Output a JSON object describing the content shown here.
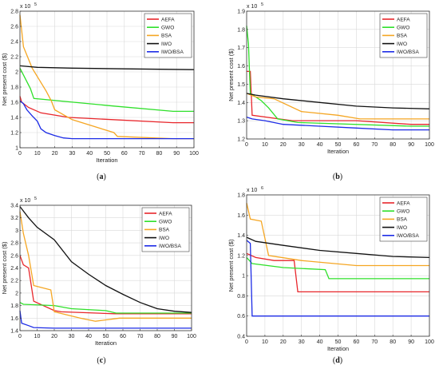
{
  "colors": {
    "AEFA": "#e8262b",
    "GWO": "#2fe02a",
    "BSA": "#f5a623",
    "IWO": "#111111",
    "IWO/BSA": "#1c2be6"
  },
  "chart_data": [
    {
      "type": "line",
      "caption": "(a)",
      "xlabel": "Iteration",
      "ylabel": "Net present cost ($)",
      "exponent_label": "x 10",
      "exponent": "5",
      "xlim": [
        0,
        100
      ],
      "ylim": [
        1.0,
        2.8
      ],
      "xticks": [
        0,
        10,
        20,
        30,
        40,
        50,
        60,
        70,
        80,
        90,
        100
      ],
      "yticks": [
        1,
        1.2,
        1.4,
        1.6,
        1.8,
        2,
        2.2,
        2.4,
        2.6,
        2.8
      ],
      "ytick_labels": [
        "1",
        "1.2",
        "1.4",
        "1.6",
        "1.8",
        "2",
        "2.2",
        "2.4",
        "2.6",
        "2.8"
      ],
      "series": [
        {
          "name": "AEFA",
          "points": [
            [
              0,
              1.68
            ],
            [
              1,
              1.6
            ],
            [
              5,
              1.53
            ],
            [
              12,
              1.46
            ],
            [
              28,
              1.4
            ],
            [
              88,
              1.33
            ],
            [
              100,
              1.33
            ]
          ]
        },
        {
          "name": "GWO",
          "points": [
            [
              0,
              2.05
            ],
            [
              6,
              1.78
            ],
            [
              8,
              1.65
            ],
            [
              54,
              1.55
            ],
            [
              88,
              1.48
            ],
            [
              100,
              1.48
            ]
          ]
        },
        {
          "name": "BSA",
          "points": [
            [
              0,
              2.75
            ],
            [
              2,
              2.33
            ],
            [
              7,
              2.05
            ],
            [
              15,
              1.75
            ],
            [
              18,
              1.62
            ],
            [
              20,
              1.5
            ],
            [
              30,
              1.37
            ],
            [
              54,
              1.2
            ],
            [
              56,
              1.15
            ],
            [
              88,
              1.12
            ],
            [
              100,
              1.12
            ]
          ]
        },
        {
          "name": "IWO",
          "points": [
            [
              0,
              2.08
            ],
            [
              10,
              2.06
            ],
            [
              30,
              2.05
            ],
            [
              60,
              2.04
            ],
            [
              100,
              2.03
            ]
          ]
        },
        {
          "name": "IWO/BSA",
          "points": [
            [
              0,
              1.62
            ],
            [
              2,
              1.58
            ],
            [
              4,
              1.5
            ],
            [
              7,
              1.42
            ],
            [
              10,
              1.35
            ],
            [
              12,
              1.25
            ],
            [
              15,
              1.2
            ],
            [
              20,
              1.16
            ],
            [
              25,
              1.13
            ],
            [
              30,
              1.12
            ],
            [
              100,
              1.12
            ]
          ]
        }
      ]
    },
    {
      "type": "line",
      "caption": "(b)",
      "xlabel": "Iteration",
      "ylabel": "Net present cost ($)",
      "exponent_label": "x 10",
      "exponent": "5",
      "xlim": [
        0,
        100
      ],
      "ylim": [
        1.2,
        1.9
      ],
      "xticks": [
        0,
        10,
        20,
        30,
        40,
        50,
        60,
        70,
        80,
        90,
        100
      ],
      "yticks": [
        1.2,
        1.3,
        1.4,
        1.5,
        1.6,
        1.7,
        1.8,
        1.9
      ],
      "ytick_labels": [
        "1.2",
        "1.3",
        "1.4",
        "1.5",
        "1.6",
        "1.7",
        "1.8",
        "1.9"
      ],
      "series": [
        {
          "name": "AEFA",
          "points": [
            [
              0,
              1.57
            ],
            [
              2,
              1.57
            ],
            [
              3,
              1.33
            ],
            [
              25,
              1.3
            ],
            [
              60,
              1.3
            ],
            [
              90,
              1.28
            ],
            [
              100,
              1.28
            ]
          ]
        },
        {
          "name": "GWO",
          "points": [
            [
              0,
              1.82
            ],
            [
              1,
              1.72
            ],
            [
              2,
              1.45
            ],
            [
              8,
              1.41
            ],
            [
              12,
              1.37
            ],
            [
              17,
              1.31
            ],
            [
              28,
              1.29
            ],
            [
              90,
              1.27
            ],
            [
              100,
              1.27
            ]
          ]
        },
        {
          "name": "BSA",
          "points": [
            [
              0,
              1.45
            ],
            [
              5,
              1.43
            ],
            [
              15,
              1.42
            ],
            [
              30,
              1.35
            ],
            [
              50,
              1.33
            ],
            [
              62,
              1.31
            ],
            [
              100,
              1.31
            ]
          ]
        },
        {
          "name": "IWO",
          "points": [
            [
              0,
              1.45
            ],
            [
              5,
              1.44
            ],
            [
              20,
              1.42
            ],
            [
              40,
              1.4
            ],
            [
              60,
              1.38
            ],
            [
              80,
              1.37
            ],
            [
              100,
              1.365
            ]
          ]
        },
        {
          "name": "IWO/BSA",
          "points": [
            [
              0,
              1.32
            ],
            [
              3,
              1.31
            ],
            [
              10,
              1.3
            ],
            [
              20,
              1.28
            ],
            [
              40,
              1.27
            ],
            [
              60,
              1.26
            ],
            [
              80,
              1.25
            ],
            [
              100,
              1.25
            ]
          ]
        }
      ]
    },
    {
      "type": "line",
      "caption": "(c)",
      "xlabel": "Iteration",
      "ylabel": "Net present cost ($)",
      "exponent_label": "x 10",
      "exponent": "5",
      "xlim": [
        0,
        100
      ],
      "ylim": [
        1.4,
        3.4
      ],
      "xticks": [
        0,
        10,
        20,
        30,
        40,
        50,
        60,
        70,
        80,
        90,
        100
      ],
      "yticks": [
        1.4,
        1.6,
        1.8,
        2,
        2.2,
        2.4,
        2.6,
        2.8,
        3,
        3.2,
        3.4
      ],
      "ytick_labels": [
        "1.4",
        "1.6",
        "1.8",
        "2",
        "2.2",
        "2.4",
        "2.6",
        "2.8",
        "3",
        "3.2",
        "3.4"
      ],
      "series": [
        {
          "name": "AEFA",
          "points": [
            [
              0,
              2.6
            ],
            [
              2,
              2.45
            ],
            [
              5,
              2.4
            ],
            [
              8,
              1.87
            ],
            [
              20,
              1.72
            ],
            [
              24,
              1.7
            ],
            [
              55,
              1.67
            ],
            [
              100,
              1.67
            ]
          ]
        },
        {
          "name": "GWO",
          "points": [
            [
              0,
              1.85
            ],
            [
              2,
              1.82
            ],
            [
              20,
              1.8
            ],
            [
              30,
              1.75
            ],
            [
              50,
              1.72
            ],
            [
              56,
              1.68
            ],
            [
              100,
              1.68
            ]
          ]
        },
        {
          "name": "BSA",
          "points": [
            [
              0,
              3.3
            ],
            [
              2,
              2.95
            ],
            [
              5,
              2.6
            ],
            [
              8,
              2.12
            ],
            [
              18,
              2.05
            ],
            [
              20,
              1.7
            ],
            [
              35,
              1.6
            ],
            [
              44,
              1.55
            ],
            [
              58,
              1.6
            ],
            [
              100,
              1.6
            ]
          ]
        },
        {
          "name": "IWO",
          "points": [
            [
              0,
              3.38
            ],
            [
              5,
              3.2
            ],
            [
              10,
              3.05
            ],
            [
              20,
              2.85
            ],
            [
              30,
              2.5
            ],
            [
              40,
              2.3
            ],
            [
              50,
              2.12
            ],
            [
              60,
              1.98
            ],
            [
              70,
              1.85
            ],
            [
              80,
              1.75
            ],
            [
              90,
              1.71
            ],
            [
              100,
              1.69
            ]
          ]
        },
        {
          "name": "IWO/BSA",
          "points": [
            [
              0,
              1.72
            ],
            [
              1,
              1.52
            ],
            [
              5,
              1.48
            ],
            [
              8,
              1.45
            ],
            [
              20,
              1.44
            ],
            [
              100,
              1.44
            ]
          ]
        }
      ]
    },
    {
      "type": "line",
      "caption": "(d)",
      "xlabel": "Iteration",
      "ylabel": "Net present cost ($)",
      "exponent_label": "x 10",
      "exponent": "6",
      "xlim": [
        0,
        100
      ],
      "ylim": [
        0.4,
        1.8
      ],
      "xticks": [
        0,
        10,
        20,
        30,
        40,
        50,
        60,
        70,
        80,
        90,
        100
      ],
      "yticks": [
        0.4,
        0.6,
        0.8,
        1,
        1.2,
        1.4,
        1.6,
        1.8
      ],
      "ytick_labels": [
        "0.4",
        "0.6",
        "0.8",
        "1",
        "1.2",
        "1.4",
        "1.6",
        "1.8"
      ],
      "series": [
        {
          "name": "AEFA",
          "points": [
            [
              0,
              1.22
            ],
            [
              5,
              1.18
            ],
            [
              15,
              1.15
            ],
            [
              26,
              1.15
            ],
            [
              28,
              0.84
            ],
            [
              100,
              0.84
            ]
          ]
        },
        {
          "name": "GWO",
          "points": [
            [
              0,
              1.18
            ],
            [
              3,
              1.12
            ],
            [
              20,
              1.08
            ],
            [
              43,
              1.06
            ],
            [
              45,
              0.97
            ],
            [
              100,
              0.97
            ]
          ]
        },
        {
          "name": "BSA",
          "points": [
            [
              0,
              1.72
            ],
            [
              2,
              1.56
            ],
            [
              8,
              1.54
            ],
            [
              12,
              1.2
            ],
            [
              30,
              1.15
            ],
            [
              60,
              1.1
            ],
            [
              100,
              1.1
            ]
          ]
        },
        {
          "name": "IWO",
          "points": [
            [
              0,
              1.38
            ],
            [
              5,
              1.34
            ],
            [
              20,
              1.3
            ],
            [
              40,
              1.25
            ],
            [
              60,
              1.22
            ],
            [
              80,
              1.19
            ],
            [
              100,
              1.18
            ]
          ]
        },
        {
          "name": "IWO/BSA",
          "points": [
            [
              0,
              1.35
            ],
            [
              2,
              1.32
            ],
            [
              3,
              0.6
            ],
            [
              100,
              0.6
            ]
          ]
        }
      ]
    }
  ]
}
